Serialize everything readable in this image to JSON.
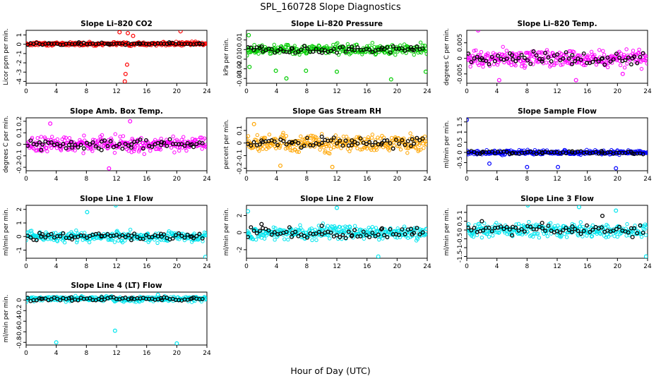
{
  "figure": {
    "title": "SPL_160728  Slope Diagnostics",
    "xlabel": "Hour of Day (UTC)"
  },
  "chart_data": [
    {
      "type": "scatter",
      "title": "Slope Li–820 CO2",
      "ylabel": "Licor ppm per min.",
      "color": "#ff0000",
      "xlim": [
        0,
        24
      ],
      "ylim": [
        -4.2,
        1.5
      ],
      "yticks": [
        -4,
        -3,
        -2,
        -1,
        0,
        1
      ],
      "xticks": [
        0,
        4,
        8,
        12,
        16,
        20,
        24
      ],
      "series": [
        {
          "values": [
            [
              13.1,
              -4.0
            ],
            [
              13.2,
              -3.2
            ],
            [
              13.4,
              -2.2
            ],
            [
              12.4,
              1.3
            ],
            [
              20.5,
              1.4
            ],
            [
              13.5,
              1.2
            ],
            [
              14.2,
              0.9
            ]
          ]
        },
        {
          "values": [
            [
              3.0,
              0.1
            ],
            [
              7.0,
              0.2
            ],
            [
              11.0,
              0.0
            ],
            [
              15.0,
              0.1
            ],
            [
              19.0,
              0.2
            ],
            [
              23.0,
              0.1
            ]
          ]
        }
      ],
      "base": 0.05,
      "spread": 0.2
    },
    {
      "type": "scatter",
      "title": "Slope Li–820 Pressure",
      "ylabel": "kPa per min.",
      "color": "#00cc00",
      "xlim": [
        0,
        24
      ],
      "ylim": [
        -0.035,
        0.02
      ],
      "yticks": [
        -0.03,
        -0.02,
        -0.01,
        0.0,
        0.01
      ],
      "xticks": [
        0,
        4,
        8,
        12,
        16,
        20,
        24
      ],
      "series": [
        {
          "values": [
            [
              0.3,
              0.015
            ],
            [
              0.4,
              -0.018
            ],
            [
              3.9,
              -0.022
            ],
            [
              7.9,
              -0.022
            ],
            [
              12.0,
              -0.023
            ],
            [
              19.2,
              -0.031
            ],
            [
              23.8,
              -0.023
            ],
            [
              5.3,
              -0.03
            ]
          ]
        },
        {
          "values": [
            [
              2.0,
              0.003
            ],
            [
              6.0,
              0.001
            ],
            [
              10.0,
              0.0
            ],
            [
              14.0,
              0.003
            ],
            [
              18.0,
              0.002
            ],
            [
              22.0,
              0.0
            ]
          ]
        }
      ],
      "base": 0.0,
      "spread": 0.006
    },
    {
      "type": "scatter",
      "title": "Slope Li–820 Temp.",
      "ylabel": "degrees C per min.",
      "color": "#ff00ff",
      "xlim": [
        0,
        24
      ],
      "ylim": [
        -0.008,
        0.009
      ],
      "yticks": [
        -0.005,
        0.0,
        0.005
      ],
      "xticks": [
        0,
        4,
        8,
        12,
        16,
        20,
        24
      ],
      "series": [
        {
          "values": [
            [
              1.5,
              0.009
            ],
            [
              4.3,
              -0.007
            ],
            [
              14.5,
              -0.007
            ],
            [
              20.7,
              -0.005
            ]
          ]
        },
        {
          "values": [
            [
              2.0,
              0.0
            ],
            [
              6.0,
              0.001
            ],
            [
              10.0,
              -0.001
            ],
            [
              14.0,
              0.001
            ],
            [
              18.0,
              0.0
            ],
            [
              22.0,
              0.0
            ]
          ]
        }
      ],
      "base": 0.0,
      "spread": 0.003
    },
    {
      "type": "scatter",
      "title": "Slope Amb. Box Temp.",
      "ylabel": "degrees C per min.",
      "color": "#ff00ff",
      "xlim": [
        0,
        24
      ],
      "ylim": [
        -0.23,
        0.23
      ],
      "yticks": [
        -0.2,
        -0.1,
        0.0,
        0.1,
        0.2
      ],
      "xticks": [
        0,
        4,
        8,
        12,
        16,
        20,
        24
      ],
      "series": [
        {
          "values": [
            [
              11.0,
              -0.21
            ],
            [
              13.8,
              0.2
            ],
            [
              3.2,
              0.18
            ]
          ]
        },
        {
          "values": [
            [
              2.0,
              -0.05
            ],
            [
              6.0,
              0.02
            ],
            [
              10.0,
              -0.05
            ],
            [
              14.0,
              0.0
            ],
            [
              18.0,
              0.02
            ],
            [
              22.0,
              0.0
            ]
          ]
        }
      ],
      "base": 0.0,
      "spread": 0.07
    },
    {
      "type": "scatter",
      "title": "Slope Gas Stream RH",
      "ylabel": "percent per min.",
      "color": "#ffa500",
      "xlim": [
        0,
        24
      ],
      "ylim": [
        -0.22,
        0.2
      ],
      "yticks": [
        -0.2,
        -0.1,
        0.0,
        0.1
      ],
      "xticks": [
        0,
        4,
        8,
        12,
        16,
        20,
        24
      ],
      "series": [
        {
          "values": [
            [
              11.4,
              -0.19
            ],
            [
              1.0,
              0.15
            ],
            [
              4.5,
              -0.18
            ]
          ]
        },
        {
          "values": [
            [
              2.0,
              0.02
            ],
            [
              6.0,
              0.0
            ],
            [
              10.0,
              0.05
            ],
            [
              14.0,
              0.02
            ],
            [
              18.0,
              0.0
            ],
            [
              22.0,
              0.03
            ]
          ]
        }
      ],
      "base": 0.0,
      "spread": 0.07
    },
    {
      "type": "scatter",
      "title": "Slope Sample Flow",
      "ylabel": "ml/min per min.",
      "color": "#0000ff",
      "xlim": [
        0,
        24
      ],
      "ylim": [
        -0.9,
        1.7
      ],
      "yticks": [
        -0.5,
        0.0,
        0.5,
        1.0,
        1.5
      ],
      "xticks": [
        0,
        4,
        8,
        12,
        16,
        20,
        24
      ],
      "series": [
        {
          "values": [
            [
              0.0,
              1.6
            ],
            [
              8.0,
              -0.72
            ],
            [
              12.1,
              -0.72
            ],
            [
              19.8,
              -0.78
            ],
            [
              3.0,
              -0.55
            ]
          ]
        },
        {
          "values": [
            [
              2.0,
              0.0
            ],
            [
              6.0,
              -0.05
            ],
            [
              10.0,
              0.0
            ],
            [
              14.0,
              0.05
            ],
            [
              18.0,
              0.0
            ],
            [
              22.0,
              -0.05
            ]
          ]
        }
      ],
      "base": 0.0,
      "spread": 0.12
    },
    {
      "type": "scatter",
      "title": "Slope Line 1 Flow",
      "ylabel": "ml/min per min.",
      "color": "#00e5ee",
      "xlim": [
        0,
        24
      ],
      "ylim": [
        -1.6,
        2.3
      ],
      "yticks": [
        -1,
        0,
        1,
        2
      ],
      "xticks": [
        0,
        4,
        8,
        12,
        16,
        20,
        24
      ],
      "series": [
        {
          "values": [
            [
              11.9,
              2.3
            ],
            [
              8.1,
              1.8
            ],
            [
              23.8,
              -1.5
            ]
          ]
        },
        {
          "values": [
            [
              2.0,
              0.0
            ],
            [
              6.0,
              0.05
            ],
            [
              10.0,
              0.0
            ],
            [
              14.0,
              0.05
            ],
            [
              18.0,
              0.0
            ],
            [
              22.0,
              0.0
            ]
          ]
        }
      ],
      "base": 0.0,
      "spread": 0.4
    },
    {
      "type": "scatter",
      "title": "Slope Line 2 Flow",
      "ylabel": "ml/min per min.",
      "color": "#00e5ee",
      "xlim": [
        0,
        24
      ],
      "ylim": [
        -3.0,
        3.2
      ],
      "yticks": [
        -2,
        0,
        2
      ],
      "xticks": [
        0,
        4,
        8,
        12,
        16,
        20,
        24
      ],
      "series": [
        {
          "values": [
            [
              12.0,
              2.9
            ],
            [
              17.5,
              -2.8
            ],
            [
              0.2,
              2.5
            ]
          ]
        },
        {
          "values": [
            [
              2.0,
              1.0
            ],
            [
              6.0,
              -0.5
            ],
            [
              10.0,
              0.8
            ],
            [
              14.0,
              -0.3
            ],
            [
              18.0,
              0.5
            ],
            [
              22.0,
              -0.2
            ]
          ]
        }
      ],
      "base": 0.0,
      "spread": 0.9
    },
    {
      "type": "scatter",
      "title": "Slope Line 3 Flow",
      "ylabel": "ml/min per min.",
      "color": "#00e5ee",
      "xlim": [
        0,
        24
      ],
      "ylim": [
        -1.6,
        1.4
      ],
      "yticks": [
        -1.5,
        -1.0,
        -0.5,
        0.0,
        0.5,
        1.0
      ],
      "xticks": [
        0,
        4,
        8,
        12,
        16,
        20,
        24
      ],
      "series": [
        {
          "values": [
            [
              8.1,
              1.4
            ],
            [
              14.9,
              1.3
            ],
            [
              23.8,
              -1.5
            ],
            [
              19.8,
              1.1
            ]
          ]
        },
        {
          "values": [
            [
              2.0,
              0.5
            ],
            [
              6.0,
              -0.3
            ],
            [
              10.0,
              0.4
            ],
            [
              14.0,
              0.2
            ],
            [
              18.0,
              0.8
            ],
            [
              22.0,
              -0.4
            ]
          ]
        }
      ],
      "base": 0.0,
      "spread": 0.4
    },
    {
      "type": "scatter",
      "title": "Slope Line 4 (LT) Flow",
      "ylabel": "ml/min per min.",
      "color": "#00e5ee",
      "xlim": [
        0,
        24
      ],
      "ylim": [
        -0.85,
        0.15
      ],
      "yticks": [
        -0.8,
        -0.6,
        -0.4,
        -0.2,
        0.0
      ],
      "xticks": [
        0,
        4,
        8,
        12,
        16,
        20,
        24
      ],
      "series": [
        {
          "values": [
            [
              4.0,
              -0.8
            ],
            [
              11.8,
              -0.58
            ],
            [
              20.0,
              -0.82
            ],
            [
              17.5,
              0.1
            ]
          ]
        },
        {
          "values": [
            [
              2.0,
              0.02
            ],
            [
              6.0,
              0.05
            ],
            [
              10.0,
              0.0
            ],
            [
              14.0,
              0.04
            ],
            [
              18.0,
              0.0
            ],
            [
              22.0,
              0.03
            ]
          ]
        }
      ],
      "base": 0.02,
      "spread": 0.05
    }
  ]
}
